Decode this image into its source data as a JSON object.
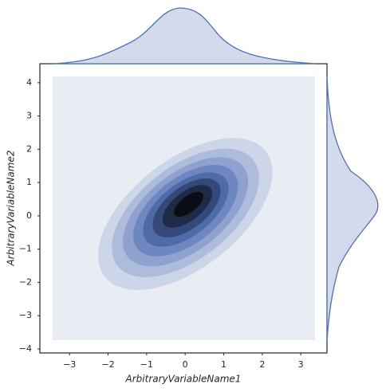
{
  "chart_data": {
    "type": "kde-joint",
    "x_label": "ArbitraryVariableName1",
    "y_label": "ArbitraryVariableName2",
    "xlim": [
      -3.77,
      3.68
    ],
    "ylim": [
      -4.12,
      4.57
    ],
    "xticks": [
      {
        "value": -3,
        "label": "−3"
      },
      {
        "value": -2,
        "label": "−2"
      },
      {
        "value": -1,
        "label": "−1"
      },
      0,
      1,
      2,
      3
    ],
    "yticks": [
      {
        "value": -4,
        "label": "−4"
      },
      {
        "value": -3,
        "label": "−3"
      },
      {
        "value": -2,
        "label": "−2"
      },
      {
        "value": -1,
        "label": "−1"
      },
      0,
      1,
      2,
      3,
      4
    ],
    "color": "#4c72b0"
  }
}
